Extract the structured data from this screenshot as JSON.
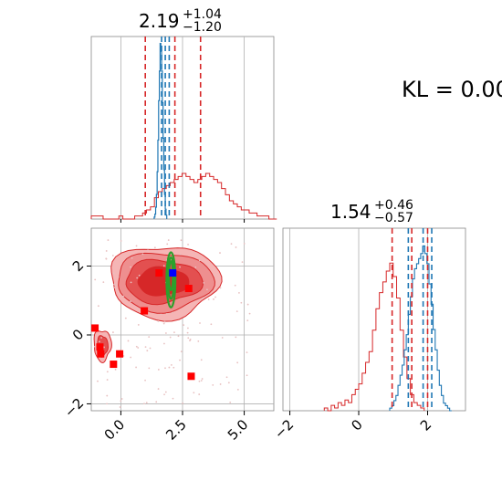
{
  "kl_text": "KL = 0.00",
  "panels": {
    "top": {
      "median": "2.19",
      "plus": "+1.04",
      "minus": "−1.20"
    },
    "right": {
      "median": "1.54",
      "plus": "+0.46",
      "minus": "−0.57"
    }
  },
  "colors": {
    "red": "#d62728",
    "blue": "#1f77b4",
    "green": "#2ca02c",
    "marker_blue": "#0000ff",
    "grid": "#b0b0b0"
  },
  "chart_data": {
    "type": "corner",
    "x_param": {
      "range": [
        -1.2,
        6.2
      ],
      "ticks": [
        0.0,
        2.5,
        5.0
      ],
      "tick_labels": [
        "0.0",
        "2.5",
        "5.0"
      ]
    },
    "y_param": {
      "range": [
        -2.2,
        3.1
      ],
      "ticks": [
        -2,
        0,
        2
      ],
      "tick_labels": [
        "−2",
        "0",
        "2"
      ]
    },
    "top_histogram": {
      "red_quantiles": [
        0.99,
        2.19,
        3.23
      ],
      "blue_quantiles": [
        1.65,
        1.8,
        1.96
      ],
      "red_hist": {
        "start": -1.2,
        "bin": 0.16,
        "counts": [
          1,
          1,
          1,
          0,
          0,
          0,
          0,
          1,
          0,
          0,
          0,
          1,
          1,
          2,
          3,
          4,
          7,
          9,
          10,
          11,
          12,
          13,
          14,
          15,
          14,
          13,
          12,
          13,
          14,
          15,
          14,
          13,
          12,
          10,
          8,
          6,
          5,
          4,
          3,
          3,
          2,
          2,
          1,
          1,
          1,
          0,
          0
        ]
      },
      "blue_hist": {
        "start": 1.35,
        "bin": 0.03,
        "counts": [
          2,
          5,
          12,
          25,
          48,
          80,
          120,
          150,
          178,
          170,
          150,
          118,
          82,
          50,
          25,
          10,
          4
        ]
      }
    },
    "right_histogram": {
      "red_quantiles": [
        0.97,
        1.54,
        2.0
      ],
      "blue_quantiles": [
        1.44,
        1.87,
        2.12
      ],
      "red_hist": {
        "start": -1.0,
        "bin": 0.1,
        "counts": [
          1,
          0,
          2,
          1,
          3,
          2,
          4,
          3,
          6,
          8,
          10,
          14,
          18,
          22,
          30,
          38,
          44,
          48,
          52,
          55,
          50,
          42,
          30,
          20,
          12,
          6,
          3,
          2,
          1
        ]
      },
      "blue_hist": {
        "start": 0.9,
        "bin": 0.06,
        "counts": [
          1,
          2,
          4,
          6,
          10,
          14,
          18,
          24,
          30,
          38,
          45,
          52,
          56,
          58,
          60,
          62,
          65,
          62,
          58,
          50,
          42,
          32,
          24,
          16,
          10,
          6,
          3,
          2,
          1,
          0
        ]
      }
    },
    "scatter_red_squares": [
      {
        "x": -1.05,
        "y": 0.2
      },
      {
        "x": -0.85,
        "y": -0.35
      },
      {
        "x": -0.82,
        "y": -0.55
      },
      {
        "x": -0.3,
        "y": -0.85
      },
      {
        "x": -0.05,
        "y": -0.55
      },
      {
        "x": 0.95,
        "y": 0.7
      },
      {
        "x": 1.55,
        "y": 1.8
      },
      {
        "x": 2.75,
        "y": 1.35
      },
      {
        "x": 2.85,
        "y": -1.2
      }
    ],
    "marker_blue_square": {
      "x": 2.1,
      "y": 1.8
    },
    "green_ellipses": [
      {
        "cx": 2.03,
        "cy": 1.6,
        "rx": 0.18,
        "ry": 0.8
      },
      {
        "cx": 2.03,
        "cy": 1.65,
        "rx": 0.13,
        "ry": 0.6
      },
      {
        "cx": 2.03,
        "cy": 1.72,
        "rx": 0.08,
        "ry": 0.42
      }
    ]
  }
}
